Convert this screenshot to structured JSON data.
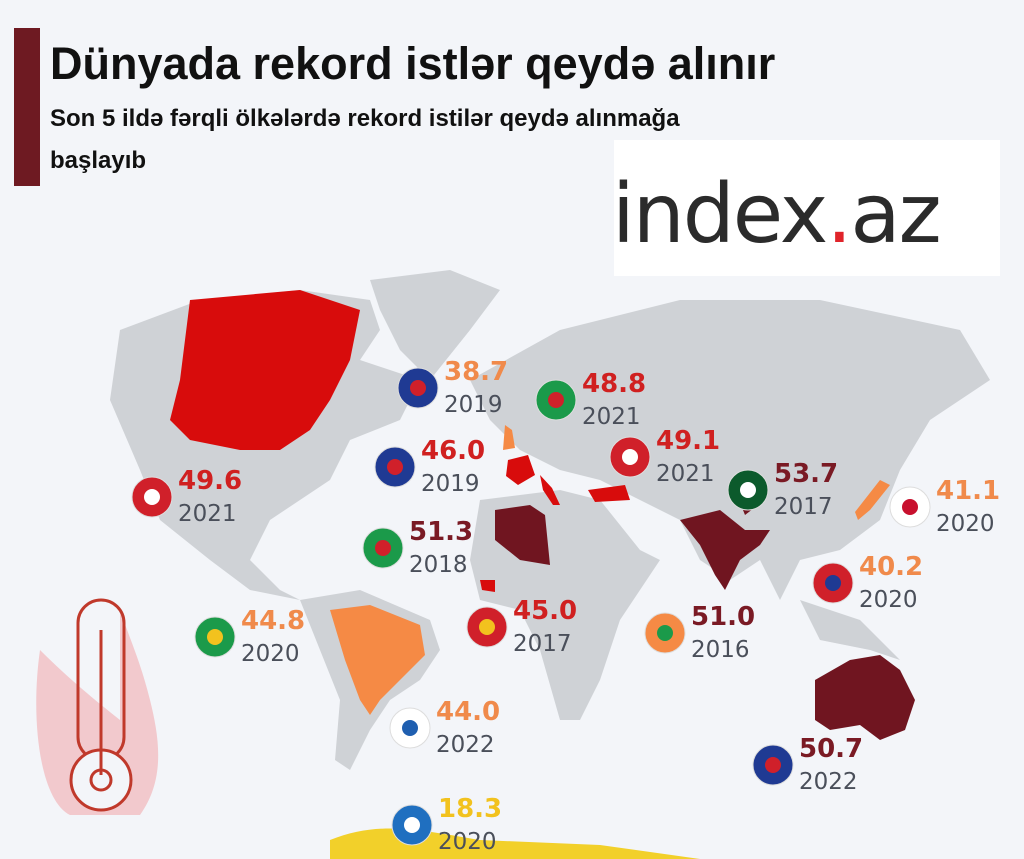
{
  "header": {
    "title": "Dünyada rekord istlər qeydə alınır",
    "subtitle_lines": [
      "Son 5 ildə fərqli ölkələrdə rekord istilər qeydə alınmağa",
      "başlayıb"
    ]
  },
  "logo": {
    "main": "index",
    "dot": ".",
    "suffix": "az"
  },
  "records": [
    {
      "temperature": "38.7",
      "year": "2019",
      "color": "#f08a4b"
    },
    {
      "temperature": "48.8",
      "year": "2021",
      "color": "#d02020"
    },
    {
      "temperature": "46.0",
      "year": "2019",
      "color": "#d02020"
    },
    {
      "temperature": "49.1",
      "year": "2021",
      "color": "#d02020"
    },
    {
      "temperature": "49.6",
      "year": "2021",
      "color": "#d02020"
    },
    {
      "temperature": "53.7",
      "year": "2017",
      "color": "#7a1a24"
    },
    {
      "temperature": "41.1",
      "year": "2020",
      "color": "#f08a4b"
    },
    {
      "temperature": "51.3",
      "year": "2018",
      "color": "#7a1a24"
    },
    {
      "temperature": "40.2",
      "year": "2020",
      "color": "#f08a4b"
    },
    {
      "temperature": "44.8",
      "year": "2020",
      "color": "#f08a4b"
    },
    {
      "temperature": "45.0",
      "year": "2017",
      "color": "#d02020"
    },
    {
      "temperature": "51.0",
      "year": "2016",
      "color": "#7a1a24"
    },
    {
      "temperature": "44.0",
      "year": "2022",
      "color": "#f08a4b"
    },
    {
      "temperature": "50.7",
      "year": "2022",
      "color": "#7a1a24"
    },
    {
      "temperature": "18.3",
      "year": "2020",
      "color": "#f2c21e"
    }
  ]
}
